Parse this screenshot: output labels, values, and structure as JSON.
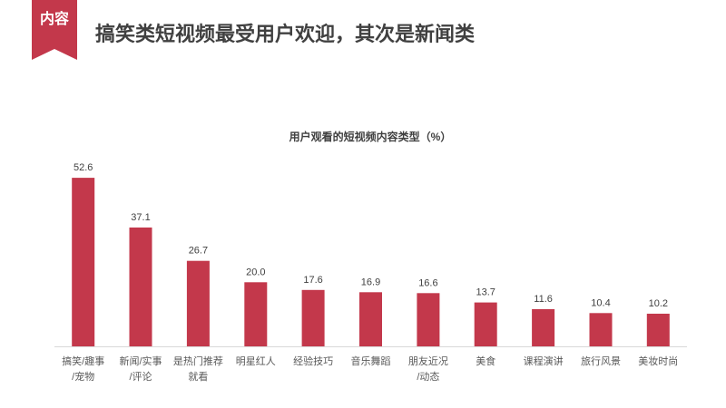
{
  "tag": {
    "label": "内容"
  },
  "slide": {
    "title": "搞笑类短视频最受用户欢迎，其次是新闻类"
  },
  "colors": {
    "accent": "#C3384B",
    "text": "#404040",
    "axis": "#D9D9D9"
  },
  "chart_data": {
    "type": "bar",
    "title": "用户观看的短视频内容类型（%）",
    "categories": [
      [
        "搞笑/趣事",
        "/宠物"
      ],
      [
        "新闻/实事",
        "/评论"
      ],
      [
        "是热门推荐",
        "就看"
      ],
      [
        "明星红人"
      ],
      [
        "经验技巧"
      ],
      [
        "音乐舞蹈"
      ],
      [
        "朋友近况",
        "/动态"
      ],
      [
        "美食"
      ],
      [
        "课程演讲"
      ],
      [
        "旅行风景"
      ],
      [
        "美妆时尚"
      ]
    ],
    "values": [
      52.6,
      37.1,
      26.7,
      20.0,
      17.6,
      16.9,
      16.6,
      13.7,
      11.6,
      10.4,
      10.2
    ],
    "data_labels": true,
    "y_axis_visible": false,
    "grid": false,
    "legend": "none"
  }
}
